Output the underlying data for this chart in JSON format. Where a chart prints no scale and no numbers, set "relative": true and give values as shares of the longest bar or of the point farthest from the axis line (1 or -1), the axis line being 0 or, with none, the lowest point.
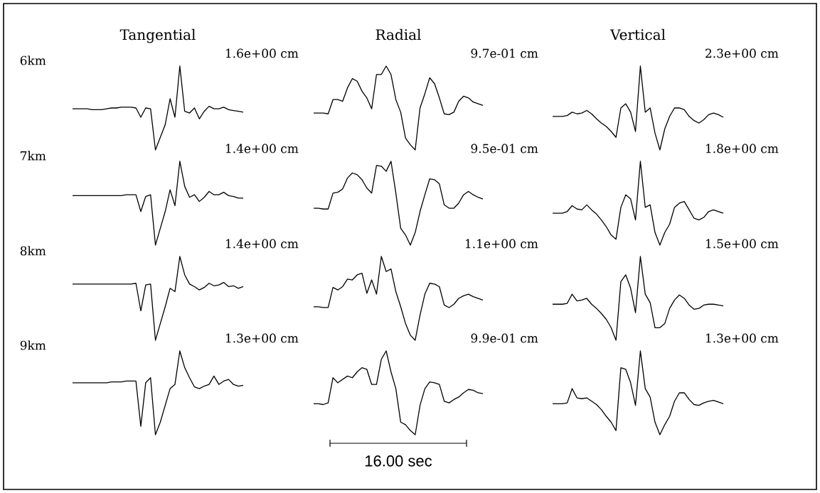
{
  "chart_data": [
    {
      "type": "line",
      "relative": true,
      "title": "Tangential",
      "ylabel": "6km",
      "annotations": [
        "1.6e+00 cm"
      ],
      "color": "#000000",
      "categories": [
        null,
        null,
        null,
        null,
        null,
        null,
        null,
        null,
        null,
        null,
        null,
        null,
        null,
        null,
        null,
        null,
        null,
        null,
        null,
        null,
        null,
        null,
        null,
        null,
        null,
        null,
        null,
        null,
        null,
        null,
        null,
        null,
        null,
        null,
        null,
        null
      ],
      "values": [
        0.49,
        0.49,
        0.49,
        0.49,
        0.48,
        0.48,
        0.48,
        0.49,
        0.5,
        0.5,
        0.51,
        0.51,
        0.51,
        0.5,
        0.39,
        0.5,
        0.49,
        0,
        0.15,
        0.3,
        0.61,
        0.39,
        1.0,
        0.46,
        0.44,
        0.5,
        0.37,
        0.46,
        0.52,
        0.49,
        0.49,
        0.51,
        0.48,
        0.47,
        0.46,
        0.45
      ]
    },
    {
      "type": "line",
      "relative": true,
      "title": "Radial",
      "annotations": [
        "9.7e-01 cm"
      ],
      "color": "#000000",
      "categories": [
        null,
        null,
        null,
        null,
        null,
        null,
        null,
        null,
        null,
        null,
        null,
        null,
        null,
        null,
        null,
        null,
        null,
        null,
        null,
        null,
        null,
        null,
        null,
        null,
        null,
        null,
        null,
        null,
        null,
        null,
        null,
        null,
        null,
        null,
        null,
        null
      ],
      "values": [
        0.44,
        0.44,
        0.44,
        0.43,
        0.6,
        0.6,
        0.58,
        0.74,
        0.85,
        0.82,
        0.7,
        0.62,
        0.49,
        0.9,
        0.9,
        1.0,
        0.9,
        0.6,
        0.45,
        0.14,
        0.06,
        0,
        0.5,
        0.67,
        0.86,
        0.79,
        0.62,
        0.43,
        0.42,
        0.45,
        0.58,
        0.64,
        0.62,
        0.57,
        0.55,
        0.53
      ]
    },
    {
      "type": "line",
      "relative": true,
      "title": "Vertical",
      "annotations": [
        "2.3e+00 cm"
      ],
      "color": "#000000",
      "categories": [
        null,
        null,
        null,
        null,
        null,
        null,
        null,
        null,
        null,
        null,
        null,
        null,
        null,
        null,
        null,
        null,
        null,
        null,
        null,
        null,
        null,
        null,
        null,
        null,
        null,
        null,
        null,
        null,
        null,
        null,
        null,
        null,
        null,
        null,
        null,
        null
      ],
      "values": [
        0.4,
        0.4,
        0.4,
        0.41,
        0.45,
        0.43,
        0.44,
        0.47,
        0.43,
        0.37,
        0.32,
        0.28,
        0.22,
        0.15,
        0.5,
        0.55,
        0.45,
        0.22,
        1.0,
        0.45,
        0.5,
        0.2,
        0,
        0.25,
        0.4,
        0.5,
        0.5,
        0.48,
        0.4,
        0.35,
        0.32,
        0.36,
        0.42,
        0.44,
        0.42,
        0.39
      ]
    },
    {
      "type": "line",
      "relative": true,
      "ylabel": "7km",
      "annotations": [
        "1.4e+00 cm"
      ],
      "color": "#000000",
      "categories": [
        null,
        null,
        null,
        null,
        null,
        null,
        null,
        null,
        null,
        null,
        null,
        null,
        null,
        null,
        null,
        null,
        null,
        null,
        null,
        null,
        null,
        null,
        null,
        null,
        null,
        null,
        null,
        null,
        null,
        null,
        null,
        null,
        null,
        null,
        null,
        null
      ],
      "values": [
        0.59,
        0.59,
        0.59,
        0.59,
        0.59,
        0.59,
        0.59,
        0.59,
        0.59,
        0.59,
        0.59,
        0.6,
        0.6,
        0.6,
        0.4,
        0.58,
        0.6,
        0,
        0.2,
        0.4,
        0.66,
        0.47,
        1.0,
        0.7,
        0.57,
        0.6,
        0.52,
        0.57,
        0.64,
        0.6,
        0.6,
        0.63,
        0.59,
        0.58,
        0.56,
        0.56
      ]
    },
    {
      "type": "line",
      "relative": true,
      "annotations": [
        "9.5e-01 cm"
      ],
      "color": "#000000",
      "categories": [
        null,
        null,
        null,
        null,
        null,
        null,
        null,
        null,
        null,
        null,
        null,
        null,
        null,
        null,
        null,
        null,
        null,
        null,
        null,
        null,
        null,
        null,
        null,
        null,
        null,
        null,
        null,
        null,
        null,
        null,
        null,
        null,
        null,
        null,
        null,
        null
      ],
      "values": [
        0.44,
        0.44,
        0.43,
        0.43,
        0.62,
        0.63,
        0.67,
        0.8,
        0.86,
        0.84,
        0.78,
        0.68,
        0.62,
        0.95,
        0.94,
        0.88,
        1.0,
        0.62,
        0.2,
        0.12,
        0,
        0.15,
        0.4,
        0.6,
        0.79,
        0.78,
        0.73,
        0.48,
        0.44,
        0.44,
        0.5,
        0.6,
        0.64,
        0.6,
        0.57,
        0.55
      ]
    },
    {
      "type": "line",
      "relative": true,
      "annotations": [
        "1.8e+00 cm"
      ],
      "color": "#000000",
      "categories": [
        null,
        null,
        null,
        null,
        null,
        null,
        null,
        null,
        null,
        null,
        null,
        null,
        null,
        null,
        null,
        null,
        null,
        null,
        null,
        null,
        null,
        null,
        null,
        null,
        null,
        null,
        null,
        null,
        null,
        null,
        null,
        null,
        null,
        null,
        null,
        null
      ],
      "values": [
        0.38,
        0.38,
        0.38,
        0.4,
        0.47,
        0.43,
        0.42,
        0.48,
        0.42,
        0.37,
        0.3,
        0.22,
        0.12,
        0.07,
        0.45,
        0.6,
        0.55,
        0.3,
        1.0,
        0.45,
        0.48,
        0.15,
        0,
        0.15,
        0.25,
        0.45,
        0.5,
        0.52,
        0.42,
        0.32,
        0.3,
        0.33,
        0.4,
        0.42,
        0.4,
        0.38
      ]
    },
    {
      "type": "line",
      "relative": true,
      "ylabel": "8km",
      "annotations": [
        "1.4e+00 cm"
      ],
      "color": "#000000",
      "categories": [
        null,
        null,
        null,
        null,
        null,
        null,
        null,
        null,
        null,
        null,
        null,
        null,
        null,
        null,
        null,
        null,
        null,
        null,
        null,
        null,
        null,
        null,
        null,
        null,
        null,
        null,
        null,
        null,
        null,
        null,
        null,
        null,
        null,
        null,
        null,
        null
      ],
      "values": [
        0.67,
        0.67,
        0.67,
        0.67,
        0.67,
        0.67,
        0.67,
        0.67,
        0.67,
        0.67,
        0.67,
        0.67,
        0.67,
        0.68,
        0.35,
        0.66,
        0.67,
        0,
        0.2,
        0.4,
        0.62,
        0.58,
        1.0,
        0.78,
        0.67,
        0.64,
        0.6,
        0.63,
        0.68,
        0.65,
        0.66,
        0.69,
        0.64,
        0.65,
        0.62,
        0.64
      ]
    },
    {
      "type": "line",
      "relative": true,
      "annotations": [
        "1.1e+00 cm"
      ],
      "color": "#000000",
      "categories": [
        null,
        null,
        null,
        null,
        null,
        null,
        null,
        null,
        null,
        null,
        null,
        null,
        null,
        null,
        null,
        null,
        null,
        null,
        null,
        null,
        null,
        null,
        null,
        null,
        null,
        null,
        null,
        null,
        null,
        null,
        null,
        null,
        null,
        null,
        null,
        null
      ],
      "values": [
        0.4,
        0.4,
        0.39,
        0.39,
        0.63,
        0.6,
        0.64,
        0.73,
        0.72,
        0.78,
        0.8,
        0.56,
        0.72,
        0.55,
        1.0,
        0.82,
        0.85,
        0.58,
        0.4,
        0.2,
        0.06,
        0,
        0.3,
        0.55,
        0.68,
        0.67,
        0.64,
        0.42,
        0.39,
        0.43,
        0.5,
        0.53,
        0.55,
        0.52,
        0.5,
        0.48
      ]
    },
    {
      "type": "line",
      "relative": true,
      "annotations": [
        "1.5e+00 cm"
      ],
      "color": "#000000",
      "categories": [
        null,
        null,
        null,
        null,
        null,
        null,
        null,
        null,
        null,
        null,
        null,
        null,
        null,
        null,
        null,
        null,
        null,
        null,
        null,
        null,
        null,
        null,
        null,
        null,
        null,
        null,
        null,
        null,
        null,
        null,
        null,
        null,
        null,
        null,
        null,
        null
      ],
      "values": [
        0.43,
        0.43,
        0.43,
        0.44,
        0.55,
        0.47,
        0.48,
        0.5,
        0.43,
        0.38,
        0.32,
        0.25,
        0.15,
        0,
        0.7,
        0.78,
        0.62,
        0.33,
        1.0,
        0.55,
        0.45,
        0.15,
        0.15,
        0.2,
        0.38,
        0.48,
        0.54,
        0.5,
        0.42,
        0.37,
        0.38,
        0.42,
        0.43,
        0.43,
        0.42,
        0.41
      ]
    },
    {
      "type": "line",
      "relative": true,
      "ylabel": "9km",
      "annotations": [
        "1.3e+00 cm"
      ],
      "color": "#000000",
      "categories": [
        null,
        null,
        null,
        null,
        null,
        null,
        null,
        null,
        null,
        null,
        null,
        null,
        null,
        null,
        null,
        null,
        null,
        null,
        null,
        null,
        null,
        null,
        null,
        null,
        null,
        null,
        null,
        null,
        null,
        null,
        null,
        null,
        null,
        null,
        null,
        null
      ],
      "values": [
        0.62,
        0.62,
        0.62,
        0.62,
        0.62,
        0.62,
        0.62,
        0.62,
        0.63,
        0.63,
        0.63,
        0.64,
        0.64,
        0.64,
        0.1,
        0.62,
        0.68,
        0,
        0.15,
        0.35,
        0.55,
        0.6,
        1.0,
        0.8,
        0.68,
        0.57,
        0.55,
        0.58,
        0.6,
        0.7,
        0.6,
        0.64,
        0.66,
        0.6,
        0.58,
        0.59
      ]
    },
    {
      "type": "line",
      "relative": true,
      "annotations": [
        "9.9e-01 cm",
        "16.00 sec"
      ],
      "color": "#000000",
      "categories": [
        null,
        null,
        null,
        null,
        null,
        null,
        null,
        null,
        null,
        null,
        null,
        null,
        null,
        null,
        null,
        null,
        null,
        null,
        null,
        null,
        null,
        null,
        null,
        null,
        null,
        null,
        null,
        null,
        null,
        null,
        null,
        null,
        null,
        null,
        null,
        null
      ],
      "values": [
        0.37,
        0.37,
        0.36,
        0.38,
        0.68,
        0.62,
        0.66,
        0.7,
        0.68,
        0.75,
        0.8,
        0.78,
        0.6,
        0.6,
        0.9,
        1.0,
        0.75,
        0.55,
        0.15,
        0.12,
        0.05,
        0,
        0.35,
        0.55,
        0.63,
        0.62,
        0.6,
        0.4,
        0.38,
        0.42,
        0.45,
        0.5,
        0.54,
        0.53,
        0.5,
        0.49
      ]
    },
    {
      "type": "line",
      "relative": true,
      "annotations": [
        "1.3e+00 cm"
      ],
      "color": "#000000",
      "categories": [
        null,
        null,
        null,
        null,
        null,
        null,
        null,
        null,
        null,
        null,
        null,
        null,
        null,
        null,
        null,
        null,
        null,
        null,
        null,
        null,
        null,
        null,
        null,
        null,
        null,
        null,
        null,
        null,
        null,
        null,
        null,
        null,
        null,
        null,
        null,
        null
      ],
      "values": [
        0.37,
        0.37,
        0.37,
        0.38,
        0.55,
        0.44,
        0.43,
        0.44,
        0.4,
        0.36,
        0.3,
        0.22,
        0.15,
        0.05,
        0.8,
        0.78,
        0.62,
        0.35,
        1.0,
        0.55,
        0.45,
        0.15,
        0,
        0.12,
        0.22,
        0.4,
        0.5,
        0.5,
        0.42,
        0.36,
        0.35,
        0.38,
        0.4,
        0.41,
        0.39,
        0.37
      ]
    }
  ]
}
